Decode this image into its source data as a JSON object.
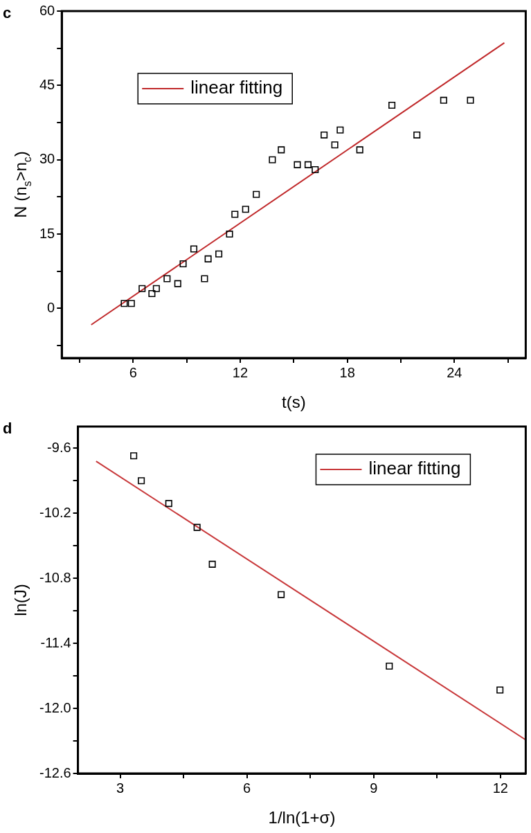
{
  "chart_data": [
    {
      "type": "scatter",
      "xlabel": "t(s)",
      "ylabel": "N (n$_{s}$>n$_{c}$)",
      "annotations": [
        "c"
      ],
      "xlim": [
        2,
        28
      ],
      "xticks": [
        {
          "value": 3,
          "label": null
        },
        6,
        {
          "value": 9,
          "label": null
        },
        12,
        {
          "value": 15,
          "label": null
        },
        18,
        {
          "value": 21,
          "label": null
        },
        24,
        {
          "value": 27,
          "label": null
        }
      ],
      "ylim": [
        -10,
        60
      ],
      "yticks": [
        {
          "value": -7.5,
          "label": null
        },
        0,
        {
          "value": 7.5,
          "label": null
        },
        15,
        {
          "value": 22.5,
          "label": null
        },
        30,
        {
          "value": 37.5,
          "label": null
        },
        45,
        {
          "value": 52.5,
          "label": null
        },
        60
      ],
      "grid": false,
      "legend": "top left",
      "series": [
        {
          "marker": "square",
          "color": "#000000",
          "x": [
            5.5,
            5.9,
            6.5,
            7.05,
            7.3,
            7.9,
            8.5,
            8.8,
            9.4,
            10.0,
            10.2,
            10.8,
            11.4,
            11.7,
            12.3,
            12.9,
            13.8,
            14.3,
            15.2,
            15.8,
            16.2,
            16.7,
            17.3,
            17.6,
            18.7,
            20.5,
            21.9,
            23.4,
            24.9
          ],
          "values": [
            1,
            1,
            4,
            3,
            4,
            6,
            5,
            9,
            12,
            6,
            10,
            11,
            15,
            19,
            20,
            23,
            30,
            32,
            29,
            29,
            28,
            35,
            33,
            36,
            32,
            41,
            35,
            42,
            42
          ]
        },
        {
          "type": "line",
          "marker": "none",
          "name": "linear fitting",
          "color": "#c0282a",
          "x": [
            3.65,
            26.8
          ],
          "values": [
            -3.3,
            53.6
          ]
        }
      ]
    },
    {
      "type": "scatter",
      "xlabel": "1/ln(1+σ)",
      "ylabel": "ln(J)",
      "annotations": [
        "d"
      ],
      "xlim": [
        2,
        12.6
      ],
      "xticks": [
        3,
        {
          "value": 4.5,
          "label": null
        },
        6,
        {
          "value": 7.5,
          "label": null
        },
        9,
        {
          "value": 10.5,
          "label": null
        },
        12
      ],
      "ylim": [
        -12.6,
        -9.4
      ],
      "yticks": [
        -12.6,
        {
          "value": -12.3,
          "label": null
        },
        {
          "value": -12,
          "label": "-12.0"
        },
        {
          "value": -11.7,
          "label": null
        },
        -11.4,
        {
          "value": -11.1,
          "label": null
        },
        -10.8,
        {
          "value": -10.5,
          "label": null
        },
        -10.2,
        {
          "value": -9.9,
          "label": null
        },
        -9.6
      ],
      "grid": false,
      "legend": "top right",
      "series": [
        {
          "marker": "square",
          "color": "#000000",
          "x": [
            3.32,
            3.5,
            4.15,
            4.82,
            5.18,
            6.81,
            9.37,
            11.99
          ],
          "values": [
            -9.67,
            -9.9,
            -10.11,
            -10.33,
            -10.67,
            -10.95,
            -11.61,
            -11.83
          ]
        },
        {
          "type": "line",
          "marker": "none",
          "name": "linear fitting",
          "color": "#c8383a",
          "x": [
            2.43,
            12.6
          ],
          "values": [
            -9.72,
            -12.29
          ]
        }
      ]
    }
  ]
}
